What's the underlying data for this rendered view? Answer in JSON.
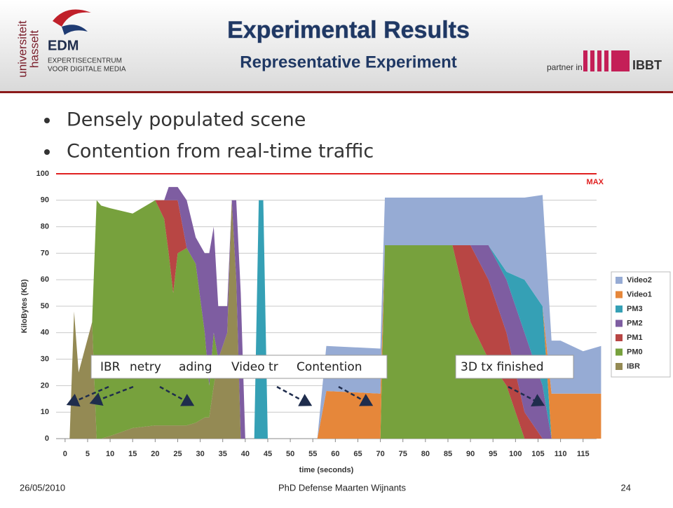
{
  "slide": {
    "title": "Experimental Results",
    "subtitle": "Representative Experiment",
    "bullets": [
      "Densely populated scene",
      "Contention from real-time traffic"
    ],
    "logo": {
      "edm": "EDM",
      "line1": "EXPERTISECENTRUM",
      "line2": "VOOR DIGITALE MEDIA",
      "uni1": "universiteit",
      "uni2": "hasselt"
    },
    "partner": {
      "label": "partner in",
      "name": "IBBT"
    },
    "footer": {
      "date": "26/05/2010",
      "center": "PhD Defense Maarten Wijnants",
      "page": "24"
    }
  },
  "chart_data": {
    "type": "stacked_area",
    "xlabel": "time (seconds)",
    "ylabel": "KiloBytes (KB)",
    "x": [
      1,
      2,
      3,
      6,
      7,
      8,
      10,
      15,
      20,
      22,
      23,
      24,
      25,
      27,
      29,
      31,
      32,
      33,
      34,
      36,
      37,
      38,
      39,
      40,
      42,
      43,
      44,
      45,
      56,
      58,
      70,
      71,
      86,
      90,
      94,
      98,
      102,
      106,
      108,
      110,
      115,
      119
    ],
    "series": [
      {
        "name": "IBR",
        "color": "#948a54",
        "values": [
          0,
          48,
          25,
          44,
          0,
          0,
          1,
          4,
          5,
          5,
          5,
          5,
          5,
          5,
          6,
          8,
          8,
          20,
          30,
          40,
          90,
          60,
          0,
          0,
          0,
          0,
          0,
          0,
          0,
          0,
          0,
          0,
          0,
          0,
          0,
          0,
          0,
          0,
          0,
          0,
          0,
          0
        ]
      },
      {
        "name": "PM0",
        "color": "#77a13d",
        "values": [
          0,
          0,
          0,
          0,
          90,
          88,
          86,
          81,
          85,
          78,
          65,
          50,
          65,
          67,
          60,
          32,
          12,
          20,
          0,
          0,
          0,
          0,
          0,
          0,
          0,
          0,
          0,
          0,
          0,
          0,
          0,
          73,
          73,
          44,
          30,
          20,
          0,
          0,
          0,
          0,
          0,
          0
        ]
      },
      {
        "name": "PM1",
        "color": "#b84644",
        "values": [
          0,
          0,
          0,
          0,
          0,
          0,
          0,
          0,
          0,
          7,
          20,
          35,
          20,
          0,
          0,
          0,
          0,
          0,
          0,
          0,
          0,
          0,
          0,
          0,
          0,
          0,
          0,
          0,
          0,
          0,
          0,
          0,
          0,
          29,
          30,
          20,
          10,
          0,
          0,
          0,
          0,
          0
        ]
      },
      {
        "name": "PM2",
        "color": "#7e5da1",
        "values": [
          0,
          0,
          0,
          0,
          0,
          0,
          0,
          0,
          0,
          0,
          5,
          5,
          5,
          18,
          10,
          30,
          50,
          40,
          20,
          10,
          0,
          30,
          55,
          0,
          0,
          0,
          0,
          0,
          0,
          0,
          0,
          0,
          0,
          0,
          13,
          20,
          30,
          20,
          0,
          0,
          0,
          0
        ]
      },
      {
        "name": "PM3",
        "color": "#35a0b5",
        "values": [
          0,
          0,
          0,
          0,
          0,
          0,
          0,
          0,
          0,
          0,
          0,
          0,
          0,
          0,
          0,
          0,
          0,
          0,
          0,
          0,
          0,
          0,
          0,
          0,
          0,
          90,
          90,
          0,
          0,
          0,
          0,
          0,
          0,
          0,
          0,
          3,
          20,
          30,
          0,
          0,
          0,
          0
        ]
      },
      {
        "name": "Video1",
        "color": "#e6873a",
        "values": [
          0,
          0,
          0,
          0,
          0,
          0,
          0,
          0,
          0,
          0,
          0,
          0,
          0,
          0,
          0,
          0,
          0,
          0,
          0,
          0,
          0,
          0,
          0,
          0,
          0,
          0,
          0,
          0,
          0,
          18,
          17,
          0,
          0,
          0,
          0,
          0,
          0,
          0,
          17,
          17,
          17,
          17
        ]
      },
      {
        "name": "Video2",
        "color": "#96abd4",
        "values": [
          0,
          0,
          0,
          0,
          0,
          0,
          0,
          0,
          0,
          0,
          0,
          0,
          0,
          0,
          0,
          0,
          0,
          0,
          0,
          0,
          0,
          0,
          0,
          0,
          0,
          0,
          0,
          0,
          0,
          17,
          17,
          18,
          18,
          18,
          18,
          28,
          31,
          42,
          20,
          20,
          16,
          18
        ]
      }
    ],
    "xlim": [
      -2,
      118
    ],
    "xticks": [
      0,
      5,
      10,
      15,
      20,
      25,
      30,
      35,
      40,
      45,
      50,
      55,
      60,
      65,
      70,
      75,
      80,
      85,
      90,
      95,
      100,
      105,
      110,
      115
    ],
    "ylim": [
      0,
      100
    ],
    "yticks": [
      0,
      10,
      20,
      30,
      40,
      50,
      60,
      70,
      80,
      90,
      100
    ],
    "grid": true,
    "max_line": 100,
    "max_label": "MAX",
    "legend": "right",
    "annotations": [
      "IBR",
      "netry",
      "ading",
      "Video tr",
      "Contention",
      "3D tx finished"
    ]
  }
}
